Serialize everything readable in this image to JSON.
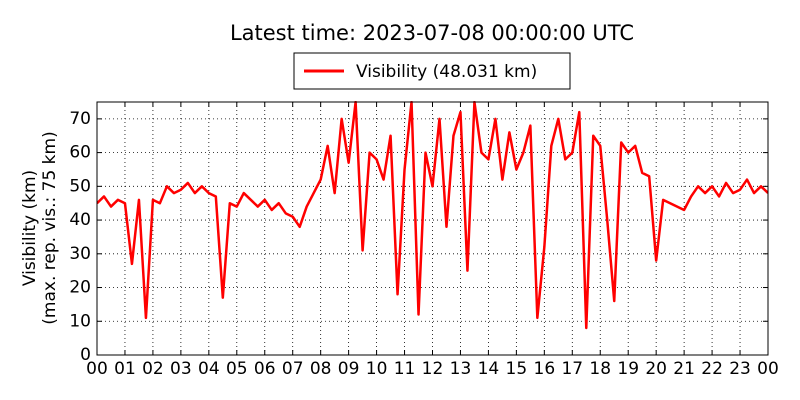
{
  "chart_data": {
    "type": "line",
    "title": "Latest time: 2023-07-08 00:00:00 UTC",
    "ylabel": [
      "Visibility (km)",
      "(max. rep. vis.: 75 km)"
    ],
    "series": [
      {
        "name": "Visibility (48.031 km)",
        "color": "#ff0000",
        "x": [
          0,
          0.25,
          0.5,
          0.75,
          1,
          1.25,
          1.5,
          1.75,
          2,
          2.25,
          2.5,
          2.75,
          3,
          3.25,
          3.5,
          3.75,
          4,
          4.25,
          4.5,
          4.75,
          5,
          5.25,
          5.5,
          5.75,
          6,
          6.25,
          6.5,
          6.75,
          7,
          7.25,
          7.5,
          7.75,
          8,
          8.25,
          8.5,
          8.75,
          9,
          9.25,
          9.5,
          9.75,
          10,
          10.25,
          10.5,
          10.75,
          11,
          11.25,
          11.5,
          11.75,
          12,
          12.25,
          12.5,
          12.75,
          13,
          13.25,
          13.5,
          13.75,
          14,
          14.25,
          14.5,
          14.75,
          15,
          15.25,
          15.5,
          15.75,
          16,
          16.25,
          16.5,
          16.75,
          17,
          17.25,
          17.5,
          17.75,
          18,
          18.25,
          18.5,
          18.75,
          19,
          19.25,
          19.5,
          19.75,
          20,
          20.25,
          20.5,
          20.75,
          21,
          21.25,
          21.5,
          21.75,
          22,
          22.25,
          22.5,
          22.75,
          23,
          23.25,
          23.5,
          23.75,
          24
        ],
        "values": [
          45,
          47,
          44,
          46,
          45,
          27,
          46,
          11,
          46,
          45,
          50,
          48,
          49,
          51,
          48,
          50,
          48,
          47,
          17,
          45,
          44,
          48,
          46,
          44,
          46,
          43,
          45,
          42,
          41,
          38,
          44,
          48,
          52,
          62,
          48,
          70,
          57,
          75,
          31,
          60,
          58,
          52,
          65,
          18,
          55,
          75,
          12,
          60,
          50,
          70,
          38,
          65,
          72,
          25,
          75,
          60,
          58,
          70,
          52,
          66,
          55,
          60,
          68,
          11,
          32,
          62,
          70,
          58,
          60,
          72,
          8,
          65,
          62,
          40,
          16,
          63,
          60,
          62,
          54,
          53,
          28,
          46,
          45,
          44,
          43,
          47,
          50,
          48,
          50,
          47,
          51,
          48,
          49,
          52,
          48,
          50,
          48.031
        ]
      }
    ],
    "xlim": [
      0,
      24
    ],
    "xticks": [
      {
        "value": 0,
        "label": "00"
      },
      {
        "value": 1,
        "label": "01"
      },
      {
        "value": 2,
        "label": "02"
      },
      {
        "value": 3,
        "label": "03"
      },
      {
        "value": 4,
        "label": "04"
      },
      {
        "value": 5,
        "label": "05"
      },
      {
        "value": 6,
        "label": "06"
      },
      {
        "value": 7,
        "label": "07"
      },
      {
        "value": 8,
        "label": "08"
      },
      {
        "value": 9,
        "label": "09"
      },
      {
        "value": 10,
        "label": "10"
      },
      {
        "value": 11,
        "label": "11"
      },
      {
        "value": 12,
        "label": "12"
      },
      {
        "value": 13,
        "label": "13"
      },
      {
        "value": 14,
        "label": "14"
      },
      {
        "value": 15,
        "label": "15"
      },
      {
        "value": 16,
        "label": "16"
      },
      {
        "value": 17,
        "label": "17"
      },
      {
        "value": 18,
        "label": "18"
      },
      {
        "value": 19,
        "label": "19"
      },
      {
        "value": 20,
        "label": "20"
      },
      {
        "value": 21,
        "label": "21"
      },
      {
        "value": 22,
        "label": "22"
      },
      {
        "value": 23,
        "label": "23"
      },
      {
        "value": 24,
        "label": "00"
      }
    ],
    "ylim": [
      0,
      75
    ],
    "yticks": [
      0,
      10,
      20,
      30,
      40,
      50,
      60,
      70
    ],
    "grid": true
  }
}
